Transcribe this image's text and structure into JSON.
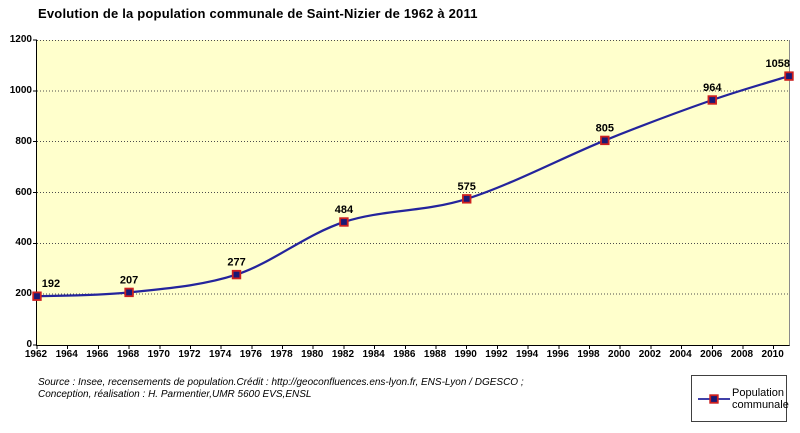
{
  "title": "Evolution de la population communale de Saint-Nizier de 1962 à 2011",
  "source_lines": [
    "Source : Insee, recensements de population.Crédit : http://geoconfluences.ens-lyon.fr, ENS-Lyon / DGESCO ;",
    "Conception, réalisation : H. Parmentier,UMR 5600 EVS,ENSL"
  ],
  "legend": {
    "label_lines": [
      "Population",
      "communale"
    ]
  },
  "colors": {
    "plot_background": "#FFFFCC",
    "line": "#24249C",
    "marker_fill": "#191975",
    "marker_border": "#CC2020",
    "gridline": "#4d4d4d",
    "axis": "#000000",
    "text": "#000000"
  },
  "chart_data": {
    "type": "line",
    "smooth": true,
    "title": "Evolution de la population communale de Saint-Nizier de 1962 à 2011",
    "series": [
      {
        "name": "Population communale",
        "x": [
          1962,
          1968,
          1975,
          1982,
          1990,
          1999,
          2006,
          2011
        ],
        "values": [
          192,
          207,
          277,
          484,
          575,
          805,
          964,
          1058
        ],
        "point_labels": [
          "192",
          "207",
          "277",
          "484",
          "575",
          "805",
          "964",
          "1058"
        ]
      }
    ],
    "xlabel": "",
    "ylabel": "",
    "xlim": [
      1962,
      2011
    ],
    "ylim": [
      0,
      1200
    ],
    "x_ticks": [
      1962,
      1964,
      1966,
      1968,
      1970,
      1972,
      1974,
      1976,
      1978,
      1980,
      1982,
      1984,
      1986,
      1988,
      1990,
      1992,
      1994,
      1996,
      1998,
      2000,
      2002,
      2004,
      2006,
      2008,
      2010
    ],
    "y_ticks": [
      0,
      200,
      400,
      600,
      800,
      1000,
      1200
    ],
    "grid": "horizontal dotted",
    "legend_position": "bottom-right"
  }
}
